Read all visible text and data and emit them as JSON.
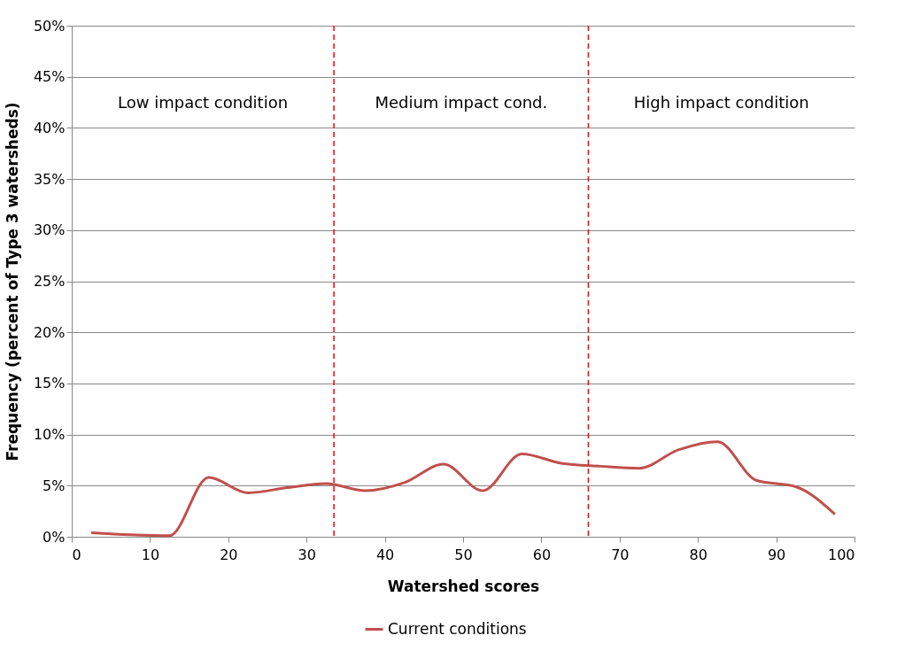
{
  "chart_data": {
    "type": "line",
    "xlabel": "Watershed scores",
    "ylabel": "Frequency (percent of Type 3 watersheds)",
    "x": [
      2.5,
      7.5,
      12.5,
      17.5,
      22.5,
      27.5,
      32.5,
      37.5,
      42.5,
      47.5,
      52.5,
      57.5,
      62.5,
      67.5,
      72.5,
      77.5,
      82.5,
      87.5,
      92.5,
      97.5
    ],
    "series": [
      {
        "name": "Current conditions",
        "color": "#c0504d",
        "values": [
          0.4,
          0.2,
          0.1,
          5.8,
          4.3,
          4.8,
          5.2,
          4.5,
          5.3,
          7.1,
          4.5,
          8.1,
          7.2,
          6.9,
          6.7,
          8.5,
          9.3,
          5.5,
          4.9,
          2.2
        ]
      }
    ],
    "xlim": [
      0,
      100
    ],
    "xticks": [
      0,
      10,
      20,
      30,
      40,
      50,
      60,
      70,
      80,
      90,
      100
    ],
    "ylim": [
      0,
      50
    ],
    "yticks": [
      {
        "value": 0,
        "label": "0%"
      },
      {
        "value": 5,
        "label": "5%"
      },
      {
        "value": 10,
        "label": "10%"
      },
      {
        "value": 15,
        "label": "15%"
      },
      {
        "value": 20,
        "label": "20%"
      },
      {
        "value": 25,
        "label": "25%"
      },
      {
        "value": 30,
        "label": "30%"
      },
      {
        "value": 35,
        "label": "35%"
      },
      {
        "value": 40,
        "label": "40%"
      },
      {
        "value": 45,
        "label": "45%"
      },
      {
        "value": 50,
        "label": "50%"
      }
    ],
    "ref_lines": [
      {
        "axis": "x",
        "value": 33.5,
        "color": "#ff0000",
        "line_style": "dashed"
      },
      {
        "axis": "x",
        "value": 66,
        "color": "#ff0000",
        "line_style": "dashed"
      }
    ],
    "annotations": [
      "Low impact condition",
      "Medium impact cond.",
      "High impact condition"
    ],
    "grid": "y",
    "legend": "bottom",
    "marker": "none",
    "line_style": "solid"
  }
}
